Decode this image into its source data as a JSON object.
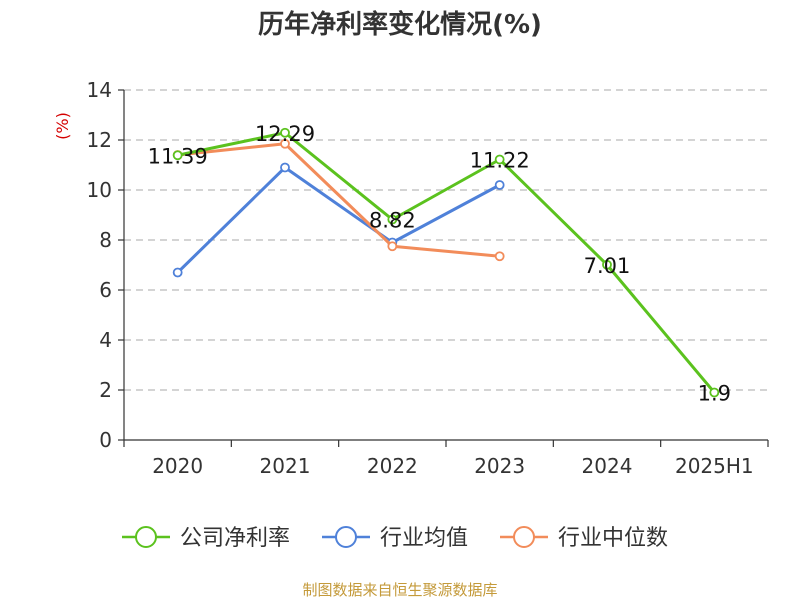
{
  "chart_data": {
    "type": "line",
    "title": "历年净利率变化情况(%)",
    "ylabel": "(%)",
    "xlabel": "",
    "categories": [
      "2020",
      "2021",
      "2022",
      "2023",
      "2024",
      "2025H1"
    ],
    "ylim": [
      0,
      14
    ],
    "yticks": [
      0,
      2,
      4,
      6,
      8,
      10,
      12,
      14
    ],
    "grid": true,
    "legend_position": "bottom",
    "series": [
      {
        "name": "公司净利率",
        "color": "#5bc21e",
        "values": [
          11.39,
          12.29,
          8.82,
          11.22,
          7.01,
          1.9
        ],
        "labels": [
          "11.39",
          "12.29",
          "8.82",
          "11.22",
          "7.01",
          "1.9"
        ]
      },
      {
        "name": "行业均值",
        "color": "#4f81d9",
        "values": [
          6.7,
          10.9,
          7.9,
          10.2,
          null,
          null
        ]
      },
      {
        "name": "行业中位数",
        "color": "#f28c5a",
        "values": [
          11.4,
          11.85,
          7.75,
          7.35,
          null,
          null
        ]
      }
    ]
  },
  "source": "制图数据来自恒生聚源数据库"
}
